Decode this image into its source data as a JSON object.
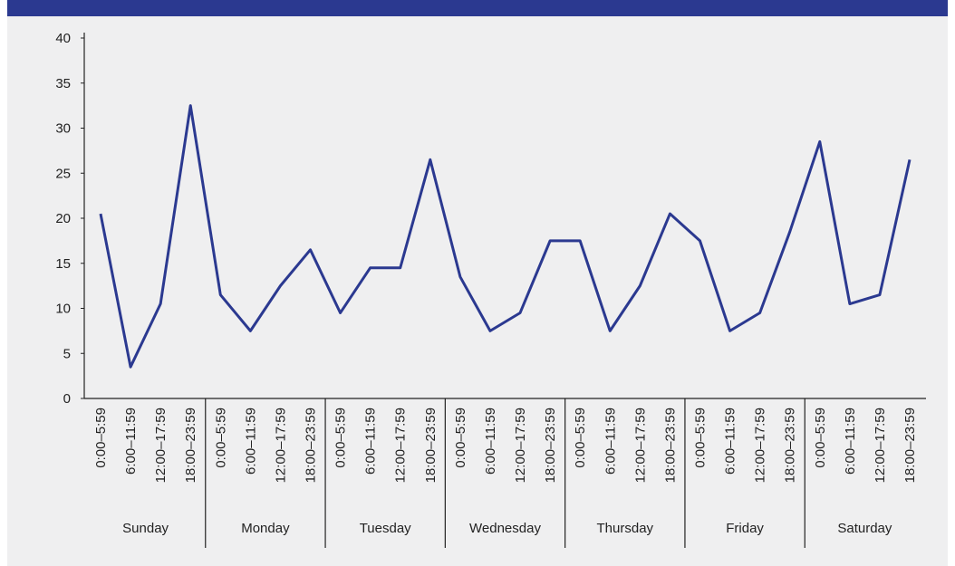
{
  "chart_data": {
    "type": "line",
    "categories": [
      "0:00–5:59",
      "6:00–11:59",
      "12:00–17:59",
      "18:00–23:59",
      "0:00–5:59",
      "6:00–11:59",
      "12:00–17:59",
      "18:00–23:59",
      "0:00–5:59",
      "6:00–11:59",
      "12:00–17:59",
      "18:00–23:59",
      "0:00–5:59",
      "6:00–11:59",
      "12:00–17:59",
      "18:00–23:59",
      "0:00–5:59",
      "6:00–11:59",
      "12:00–17:59",
      "18:00–23:59",
      "0:00–5:59",
      "6:00–11:59",
      "12:00–17:59",
      "18:00–23:59",
      "0:00–5:59",
      "6:00–11:59",
      "12:00–17:59",
      "18:00–23:59"
    ],
    "groups": [
      "Sunday",
      "Monday",
      "Tuesday",
      "Wednesday",
      "Thursday",
      "Friday",
      "Saturday"
    ],
    "color": "#2b3990",
    "values": [
      20.5,
      3.5,
      10.5,
      32.5,
      11.5,
      7.5,
      12.5,
      16.5,
      9.5,
      14.5,
      14.5,
      26.5,
      13.5,
      7.5,
      9.5,
      17.5,
      17.5,
      7.5,
      12.5,
      20.5,
      17.5,
      7.5,
      9.5,
      18.5,
      28.5,
      10.5,
      11.5,
      26.5
    ],
    "ylim": [
      0,
      40
    ],
    "yticks": [
      0,
      5,
      10,
      15,
      20,
      25,
      30,
      35,
      40
    ]
  }
}
